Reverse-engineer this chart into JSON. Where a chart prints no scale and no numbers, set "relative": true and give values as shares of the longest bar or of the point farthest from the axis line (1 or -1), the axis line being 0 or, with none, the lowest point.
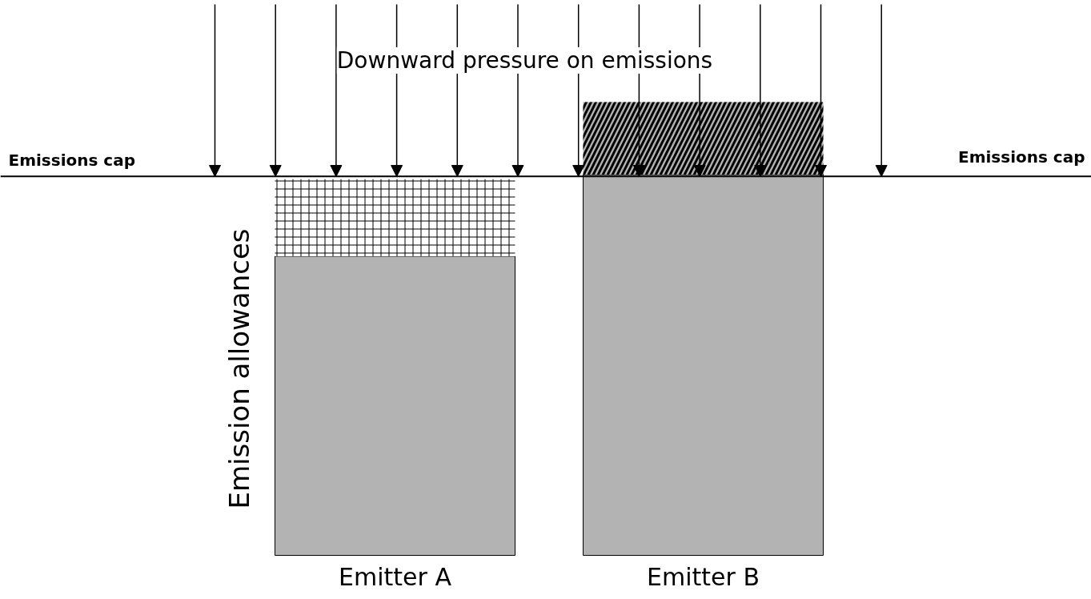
{
  "chart_data": {
    "type": "bar",
    "stacked": true,
    "relative": true,
    "ylabel": "Emission allowances",
    "categories": [
      "Emitter A",
      "Emitter B"
    ],
    "series": [
      {
        "color": "#b3b3b3",
        "values": [
          0.66,
          0.84
        ]
      },
      {
        "colors": [
          "#ffffff",
          "#b3b3b3"
        ],
        "values": [
          0.17,
          0.16
        ]
      }
    ],
    "ref_lines": [
      {
        "axis": "y",
        "value": 0.836,
        "label": "Emissions cap",
        "color": "#000000"
      }
    ],
    "annotations": [
      "Downward pressure on emissions"
    ],
    "grid": false
  }
}
